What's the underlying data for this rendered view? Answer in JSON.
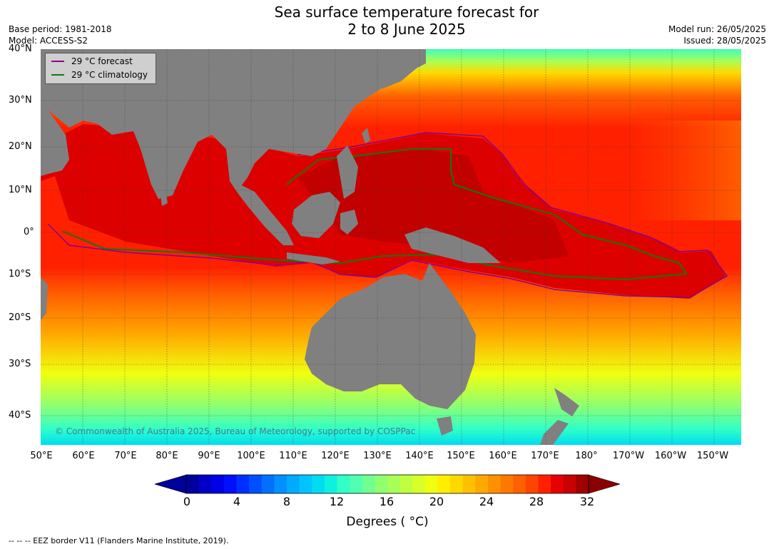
{
  "title": {
    "line1": "Sea surface temperature forecast for",
    "line2": "2 to 8 June 2025"
  },
  "info_left": {
    "base_period": "Base period: 1981-2018",
    "model": "Model: ACCESS-S2"
  },
  "info_right": {
    "model_run": "Model run: 26/05/2025",
    "issued": "Issued: 28/05/2025"
  },
  "legend": {
    "forecast_label": "29 °C  forecast",
    "forecast_color": "#8b008b",
    "climatology_label": "29 °C  climatology",
    "climatology_color": "#117711"
  },
  "copyright": "© Commonwealth of Australia 2025, Bureau of Meteorology, supported by COSPPac",
  "lat_labels": [
    "40°N",
    "30°N",
    "20°N",
    "10°N",
    "0°",
    "10°S",
    "20°S",
    "30°S",
    "40°S"
  ],
  "lon_labels": [
    "50°E",
    "60°E",
    "70°E",
    "80°E",
    "90°E",
    "100°E",
    "110°E",
    "120°E",
    "130°E",
    "140°E",
    "150°E",
    "160°E",
    "170°E",
    "180°",
    "170°W",
    "160°W",
    "150°W"
  ],
  "colorbar": {
    "ticks": [
      "0",
      "4",
      "8",
      "12",
      "16",
      "20",
      "24",
      "28",
      "32"
    ],
    "title": "Degrees ( °C)",
    "colors": [
      "#00009a",
      "#0000c8",
      "#0000e6",
      "#0010ff",
      "#0030ff",
      "#0050ff",
      "#0070ff",
      "#0090ff",
      "#00aaff",
      "#00c4ff",
      "#00dcf0",
      "#10f0e0",
      "#30ffc8",
      "#50ffb0",
      "#70ff90",
      "#90ff70",
      "#a8ff58",
      "#c0ff40",
      "#d8ff28",
      "#f0ff10",
      "#ffee00",
      "#ffd800",
      "#ffc000",
      "#ffa800",
      "#ff9000",
      "#ff7800",
      "#ff6000",
      "#ff4400",
      "#ff2000",
      "#e60000",
      "#c80000",
      "#a00000"
    ]
  },
  "footer": "--  --  -- EEZ border V11 (Flanders Marine Institute, 2019)."
}
